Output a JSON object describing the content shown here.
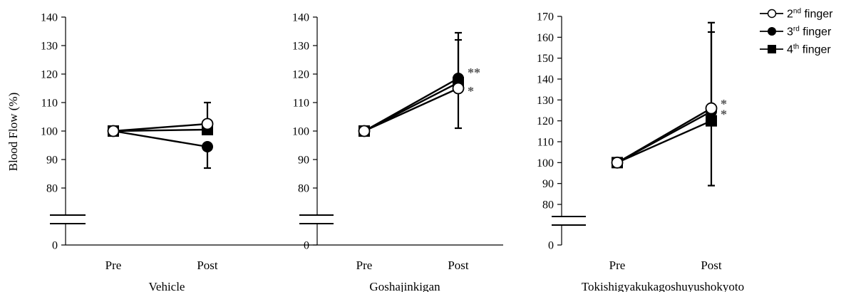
{
  "figure": {
    "ylabel": "Blood Flow (%)",
    "legend": {
      "placement": "top-right",
      "entries": [
        {
          "base": "2",
          "sup": "nd",
          "rest": " finger",
          "marker": "open-circle"
        },
        {
          "base": "3",
          "sup": "rd",
          "rest": " finger",
          "marker": "filled-circle"
        },
        {
          "base": "4",
          "sup": "th",
          "rest": " finger",
          "marker": "filled-square"
        }
      ]
    }
  },
  "chart_data": [
    {
      "type": "line",
      "title": "Vehicle",
      "categories": [
        "Pre",
        "Post"
      ],
      "ylabel": "Blood Flow (%)",
      "ylim": [
        0,
        140
      ],
      "axis_break": true,
      "yticks": [
        "0",
        "80",
        "90",
        "100",
        "110",
        "120",
        "130",
        "140"
      ],
      "series": [
        {
          "name": "2nd finger",
          "marker": "open-circle",
          "values": [
            100,
            102.5
          ],
          "err_plus": [
            0,
            7.5
          ],
          "err_minus": [
            0,
            0
          ]
        },
        {
          "name": "3rd finger",
          "marker": "filled-circle",
          "values": [
            100,
            94.5
          ],
          "err_plus": [
            0,
            0
          ],
          "err_minus": [
            0,
            7.5
          ]
        },
        {
          "name": "4th finger",
          "marker": "filled-square",
          "values": [
            100,
            100.5
          ],
          "err_plus": [
            0,
            0
          ],
          "err_minus": [
            0,
            0
          ]
        }
      ],
      "annotations": []
    },
    {
      "type": "line",
      "title": "Goshajinkigan",
      "categories": [
        "Pre",
        "Post"
      ],
      "ylim": [
        0,
        140
      ],
      "axis_break": true,
      "yticks": [
        "0",
        "80",
        "90",
        "100",
        "110",
        "120",
        "130",
        "140"
      ],
      "series": [
        {
          "name": "2nd finger",
          "marker": "open-circle",
          "values": [
            100,
            115
          ],
          "err_plus": [
            0,
            0
          ],
          "err_minus": [
            0,
            14
          ]
        },
        {
          "name": "3rd finger",
          "marker": "filled-circle",
          "values": [
            100,
            118.5
          ],
          "err_plus": [
            0,
            16
          ],
          "err_minus": [
            0,
            0
          ]
        },
        {
          "name": "4th finger",
          "marker": "filled-square",
          "values": [
            100,
            117
          ],
          "err_plus": [
            0,
            15
          ],
          "err_minus": [
            0,
            0
          ]
        }
      ],
      "annotations": [
        {
          "text": "**",
          "x": "Post",
          "y": 121.5
        },
        {
          "text": "*",
          "x": "Post",
          "y": 115
        }
      ]
    },
    {
      "type": "line",
      "title": "Tokishigyakukagoshuyushokyoto",
      "categories": [
        "Pre",
        "Post"
      ],
      "ylim": [
        0,
        170
      ],
      "axis_break": true,
      "yticks": [
        "0",
        "80",
        "90",
        "100",
        "110",
        "120",
        "130",
        "140",
        "150",
        "160",
        "170"
      ],
      "series": [
        {
          "name": "2nd finger",
          "marker": "open-circle",
          "values": [
            100,
            126
          ],
          "err_plus": [
            0,
            41
          ],
          "err_minus": [
            0,
            0
          ]
        },
        {
          "name": "3rd finger",
          "marker": "filled-circle",
          "values": [
            100,
            124.5
          ],
          "err_plus": [
            0,
            38
          ],
          "err_minus": [
            0,
            0
          ]
        },
        {
          "name": "4th finger",
          "marker": "filled-square",
          "values": [
            100,
            120
          ],
          "err_plus": [
            0,
            0
          ],
          "err_minus": [
            0,
            31
          ]
        }
      ],
      "annotations": [
        {
          "text": "*",
          "x": "Post",
          "y": 129.5
        },
        {
          "text": "*",
          "x": "Post",
          "y": 124.5
        }
      ]
    }
  ]
}
